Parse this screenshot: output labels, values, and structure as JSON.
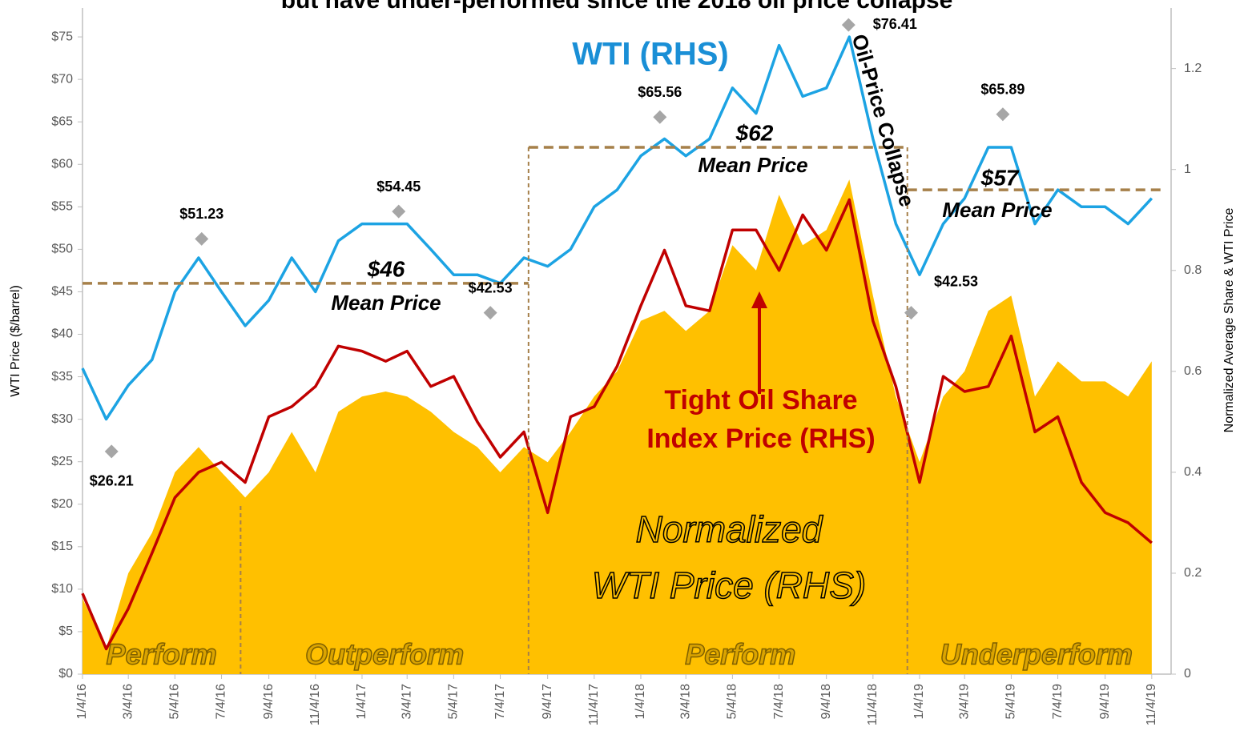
{
  "chart_data": {
    "type": "line",
    "title": "but have under-performed since the 2018 oil price collapse",
    "ylabel": "WTI Price ($/barrel)",
    "y2label": "Normalized  Average Share & WTI Price",
    "xlim": [
      "1/4/16",
      "11/22/19"
    ],
    "xticks": [
      "1/4/16",
      "3/4/16",
      "5/4/16",
      "7/4/16",
      "9/4/16",
      "11/4/16",
      "1/4/17",
      "3/4/17",
      "5/4/17",
      "7/4/17",
      "9/4/17",
      "11/4/17",
      "1/4/18",
      "3/4/18",
      "5/4/18",
      "7/4/18",
      "9/4/18",
      "11/4/18",
      "1/4/19",
      "3/4/19",
      "5/4/19",
      "7/4/19",
      "9/4/19",
      "11/4/19"
    ],
    "ylim": [
      0,
      78.4
    ],
    "yticks": [
      {
        "value": 0,
        "label": "$0"
      },
      {
        "value": 5,
        "label": "$5"
      },
      {
        "value": 10,
        "label": "$10"
      },
      {
        "value": 15,
        "label": "$15"
      },
      {
        "value": 20,
        "label": "$20"
      },
      {
        "value": 25,
        "label": "$25"
      },
      {
        "value": 30,
        "label": "$30"
      },
      {
        "value": 35,
        "label": "$35"
      },
      {
        "value": 40,
        "label": "$40"
      },
      {
        "value": 45,
        "label": "$45"
      },
      {
        "value": 50,
        "label": "$50"
      },
      {
        "value": 55,
        "label": "$55"
      },
      {
        "value": 60,
        "label": "$60"
      },
      {
        "value": 65,
        "label": "$65"
      },
      {
        "value": 70,
        "label": "$70"
      },
      {
        "value": 75,
        "label": "$75"
      }
    ],
    "y2lim": [
      0,
      1.32
    ],
    "y2ticks": [
      0,
      0.2,
      0.4,
      0.6,
      0.8,
      1,
      1.2
    ],
    "x": [
      "1/4/16",
      "2/4/16",
      "3/4/16",
      "4/4/16",
      "5/4/16",
      "6/4/16",
      "7/4/16",
      "8/4/16",
      "9/4/16",
      "10/4/16",
      "11/4/16",
      "12/4/16",
      "1/4/17",
      "2/4/17",
      "3/4/17",
      "4/4/17",
      "5/4/17",
      "6/4/17",
      "7/4/17",
      "8/4/17",
      "9/4/17",
      "10/4/17",
      "11/4/17",
      "12/4/17",
      "1/4/18",
      "2/4/18",
      "3/4/18",
      "4/4/18",
      "5/4/18",
      "6/4/18",
      "7/4/18",
      "8/4/18",
      "9/4/18",
      "10/4/18",
      "11/4/18",
      "12/4/18",
      "1/4/19",
      "2/4/19",
      "3/4/19",
      "4/4/19",
      "5/4/19",
      "6/4/19",
      "7/4/19",
      "8/4/19",
      "9/4/19",
      "10/4/19",
      "11/4/19"
    ],
    "series": [
      {
        "name": "Normalized WTI Price (RHS)",
        "kind": "area",
        "axis": "y2",
        "color": "#ffc000",
        "values": [
          0.15,
          0.05,
          0.2,
          0.28,
          0.4,
          0.45,
          0.4,
          0.35,
          0.4,
          0.48,
          0.4,
          0.52,
          0.55,
          0.56,
          0.55,
          0.52,
          0.48,
          0.45,
          0.4,
          0.45,
          0.42,
          0.48,
          0.55,
          0.6,
          0.7,
          0.72,
          0.68,
          0.72,
          0.85,
          0.8,
          0.95,
          0.85,
          0.88,
          0.98,
          0.75,
          0.55,
          0.42,
          0.55,
          0.6,
          0.72,
          0.75,
          0.55,
          0.62,
          0.58,
          0.58,
          0.55,
          0.62
        ]
      },
      {
        "name": "Tight Oil Share Index Price (RHS)",
        "kind": "line",
        "axis": "y2",
        "color": "#c00000",
        "values": [
          0.16,
          0.05,
          0.13,
          0.24,
          0.35,
          0.4,
          0.42,
          0.38,
          0.51,
          0.53,
          0.57,
          0.65,
          0.64,
          0.62,
          0.64,
          0.57,
          0.59,
          0.5,
          0.43,
          0.48,
          0.32,
          0.51,
          0.53,
          0.61,
          0.73,
          0.84,
          0.73,
          0.72,
          0.88,
          0.88,
          0.8,
          0.91,
          0.84,
          0.94,
          0.7,
          0.57,
          0.38,
          0.59,
          0.56,
          0.57,
          0.67,
          0.48,
          0.51,
          0.38,
          0.32,
          0.3,
          0.26
        ]
      },
      {
        "name": "WTI (RHS)",
        "kind": "line",
        "axis": "y",
        "color": "#1ca3e3",
        "values": [
          36,
          30,
          34,
          37,
          45,
          49,
          45,
          41,
          44,
          49,
          45,
          51,
          53,
          53,
          53,
          50,
          47,
          47,
          46,
          49,
          48,
          50,
          55,
          57,
          61,
          63,
          61,
          63,
          69,
          66,
          74,
          68,
          69,
          75,
          63,
          53,
          47,
          53,
          56,
          62,
          62,
          53,
          57,
          55,
          55,
          53,
          56
        ]
      }
    ],
    "price_points": [
      {
        "x": "2/11/16",
        "value": 26.21,
        "label": "$26.21"
      },
      {
        "x": "6/8/16",
        "value": 51.23,
        "label": "$51.23"
      },
      {
        "x": "2/21/17",
        "value": 54.45,
        "label": "$54.45"
      },
      {
        "x": "6/21/17",
        "value": 42.53,
        "label": "$42.53"
      },
      {
        "x": "1/29/18",
        "value": 65.56,
        "label": "$65.56"
      },
      {
        "x": "10/3/18",
        "value": 76.41,
        "label": "$76.41"
      },
      {
        "x": "12/24/18",
        "value": 42.53,
        "label": "$42.53"
      },
      {
        "x": "4/23/19",
        "value": 65.89,
        "label": "$65.89"
      }
    ],
    "means": [
      {
        "from": "1/4/16",
        "to": "8/10/17",
        "value": 46,
        "label": "$46",
        "text": "Mean Price"
      },
      {
        "from": "8/10/17",
        "to": "12/19/18",
        "value": 62,
        "label": "$62",
        "text": "Mean Price"
      },
      {
        "from": "12/19/18",
        "to": "11/22/19",
        "value": 57,
        "label": "$57",
        "text": "Mean Price"
      }
    ],
    "regions": [
      {
        "from": "1/4/16",
        "to": "7/29/16",
        "label": "Perform"
      },
      {
        "from": "7/29/16",
        "to": "8/10/17",
        "label": "Outperform"
      },
      {
        "from": "8/10/17",
        "to": "12/19/18",
        "label": "Perform"
      },
      {
        "from": "12/19/18",
        "to": "11/22/19",
        "label": "Underperform"
      }
    ],
    "annotation": "Oil-Price Collapse"
  }
}
